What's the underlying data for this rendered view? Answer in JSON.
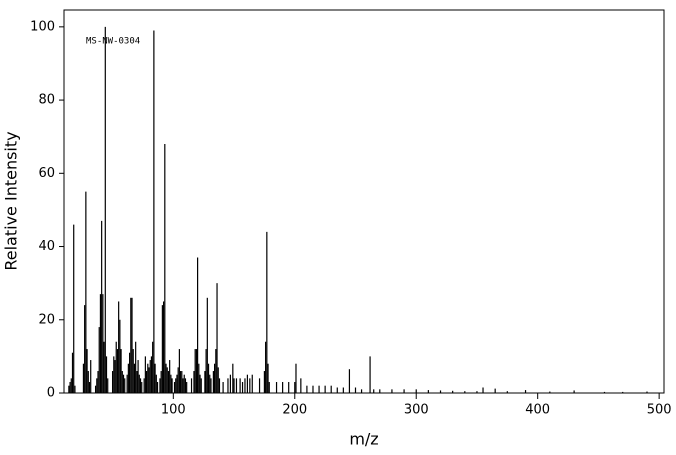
{
  "chart_data": {
    "type": "stem",
    "annotation": "MS-NW-0304",
    "x_label": "m/z",
    "y_label": "Relative Intensity",
    "color": "#000000",
    "xlim": [
      10,
      504
    ],
    "ylim": [
      0,
      104.6
    ],
    "xticks": [
      100,
      200,
      300,
      400,
      500
    ],
    "yticks": [
      0,
      20,
      40,
      60,
      80,
      100
    ],
    "x": [
      14,
      15,
      16,
      17,
      18,
      19,
      26,
      27,
      28,
      29,
      30,
      31,
      32,
      36,
      37,
      38,
      39,
      40,
      41,
      42,
      43,
      44,
      45,
      46,
      50,
      51,
      52,
      53,
      54,
      55,
      56,
      57,
      58,
      59,
      60,
      62,
      63,
      64,
      65,
      66,
      67,
      68,
      69,
      70,
      71,
      72,
      73,
      74,
      76,
      77,
      78,
      79,
      80,
      81,
      82,
      83,
      84,
      85,
      86,
      87,
      89,
      90,
      91,
      92,
      93,
      94,
      95,
      96,
      97,
      98,
      99,
      101,
      102,
      103,
      104,
      105,
      106,
      107,
      108,
      109,
      110,
      111,
      115,
      117,
      118,
      119,
      120,
      121,
      122,
      123,
      126,
      127,
      128,
      129,
      130,
      131,
      133,
      134,
      135,
      136,
      137,
      138,
      141,
      145,
      147,
      149,
      150,
      152,
      155,
      157,
      159,
      161,
      163,
      165,
      171,
      175,
      176,
      177,
      178,
      179,
      185,
      190,
      195,
      200,
      201,
      205,
      210,
      215,
      220,
      225,
      230,
      235,
      240,
      245,
      250,
      255,
      262,
      265,
      270,
      280,
      290,
      300,
      310,
      320,
      330,
      340,
      350,
      355,
      365,
      375,
      390,
      410,
      430,
      455,
      470,
      490
    ],
    "values": [
      2,
      3,
      4,
      11,
      46,
      2,
      8,
      24,
      55,
      12,
      6,
      3,
      9,
      2,
      4,
      6,
      18,
      27,
      47,
      27,
      14,
      100,
      10,
      4,
      6,
      10,
      9,
      14,
      12,
      25,
      20,
      12,
      6,
      5,
      4,
      5,
      8,
      11,
      26,
      26,
      12,
      8,
      14,
      6,
      9,
      5,
      4,
      3,
      4,
      10,
      6,
      8,
      7,
      9,
      10,
      14,
      99,
      8,
      5,
      3,
      4,
      6,
      24,
      25,
      68,
      8,
      7,
      6,
      9,
      5,
      4,
      3,
      4,
      5,
      7,
      12,
      6,
      6,
      4,
      5,
      4,
      3,
      4,
      6,
      12,
      12,
      37,
      8,
      5,
      4,
      6,
      12,
      26,
      8,
      5,
      4,
      6,
      8,
      12,
      30,
      7,
      4,
      3,
      4,
      5,
      8,
      4,
      4,
      4,
      3,
      4,
      5,
      4,
      5,
      4,
      6,
      14,
      44,
      8,
      3,
      3,
      3,
      3,
      3,
      8,
      4,
      2,
      2,
      2,
      2,
      2,
      1.5,
      1.5,
      6.5,
      1.5,
      1,
      10,
      1,
      1,
      1,
      1,
      1,
      0.8,
      0.7,
      0.6,
      0.5,
      0.5,
      1.5,
      1.2,
      0.5,
      0.8,
      0.4,
      0.7,
      0.3,
      0.3,
      0.4
    ]
  }
}
